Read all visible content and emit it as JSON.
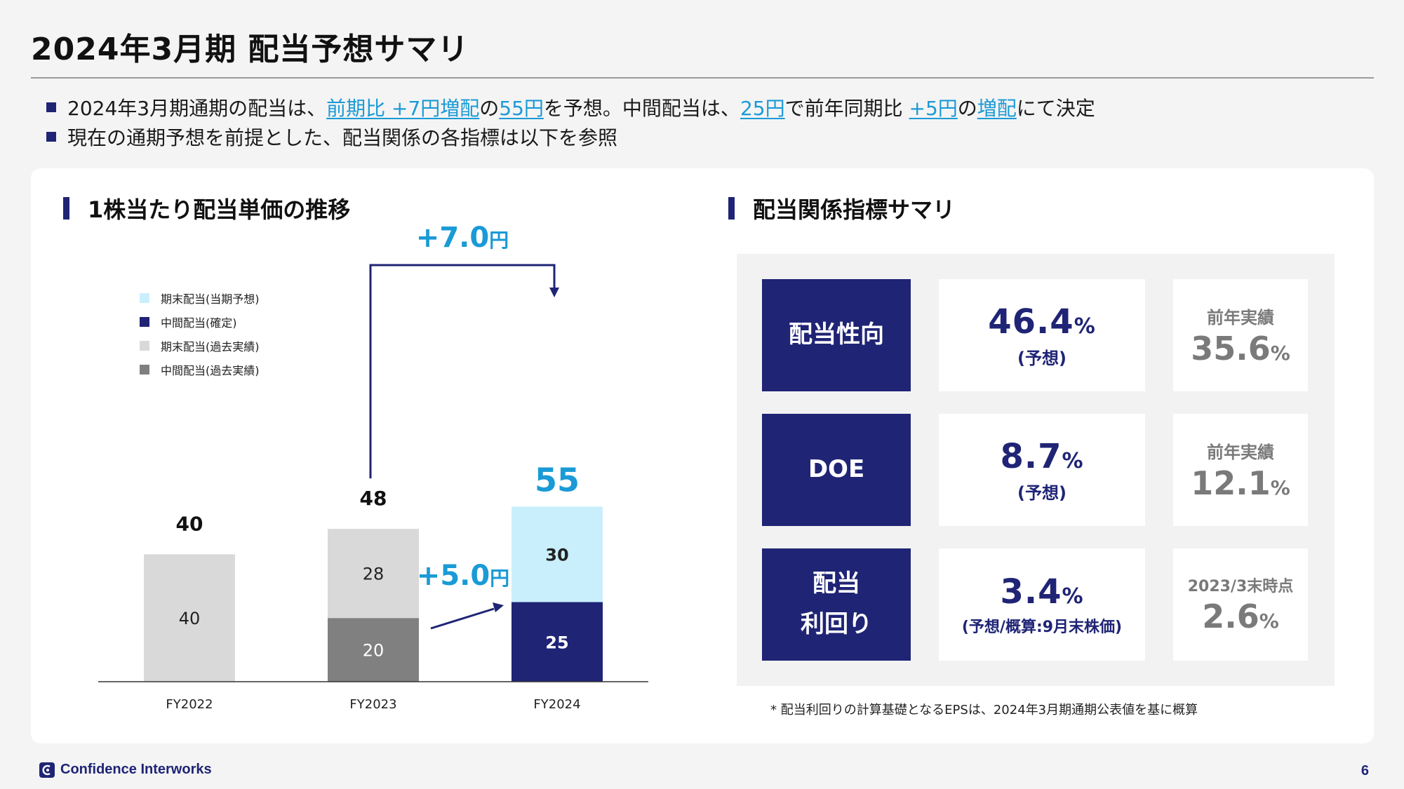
{
  "title": "2024年3月期 配当予想サマリ",
  "bullets": {
    "b1": {
      "p1": "2024年3月期通期の配当は、",
      "h1": "前期比 +7円増配",
      "p2": "の",
      "h2": "55円",
      "p3": "を予想。中間配当は、",
      "h3": "25円",
      "p4": "で前年同期比 ",
      "h4": "+5円",
      "p5": "の",
      "h5": "増配",
      "p6": "にて決定"
    },
    "b2": "現在の通期予想を前提とした、配当関係の各指標は以下を参照"
  },
  "left_section_title": "1株当たり配当単価の推移",
  "right_section_title": "配当関係指標サマリ",
  "colors": {
    "navy": "#1f2475",
    "light_blue": "#c9effc",
    "light_gray": "#d9d9d9",
    "dark_gray": "#808080",
    "accent": "#1a9ad6"
  },
  "chart_data": {
    "type": "bar",
    "stacked": true,
    "categories": [
      "FY2022",
      "FY2023",
      "FY2024"
    ],
    "series": [
      {
        "name": "中間配当(過去実績)",
        "values": [
          null,
          20,
          null
        ],
        "color": "#808080"
      },
      {
        "name": "期末配当(過去実績)",
        "values": [
          40,
          28,
          null
        ],
        "color": "#d9d9d9"
      },
      {
        "name": "中間配当(確定)",
        "values": [
          null,
          null,
          25
        ],
        "color": "#1f2475"
      },
      {
        "name": "期末配当(当期予想)",
        "values": [
          null,
          null,
          30
        ],
        "color": "#c9effc"
      }
    ],
    "totals": [
      "40",
      "48",
      "55"
    ],
    "legend_order": [
      "期末配当(当期予想)",
      "中間配当(確定)",
      "期末配当(過去実績)",
      "中間配当(過去実績)"
    ],
    "legend_placement": "top-left",
    "annotations": {
      "annual_diff": {
        "num": "+7.0",
        "unit": "円"
      },
      "interim_diff": {
        "num": "+5.0",
        "unit": "円"
      }
    },
    "ylim": [
      0,
      70
    ],
    "grid": false
  },
  "metrics": [
    {
      "label_lines": [
        "配当性向"
      ],
      "value": "46.4",
      "unit": "%",
      "note": "(予想)",
      "prev_caption": "前年実績",
      "prev_value": "35.6",
      "prev_unit": "%"
    },
    {
      "label_lines": [
        "DOE"
      ],
      "value": "8.7",
      "unit": "%",
      "note": "(予想)",
      "prev_caption": "前年実績",
      "prev_value": "12.1",
      "prev_unit": "%"
    },
    {
      "label_lines": [
        "配当",
        "利回り"
      ],
      "value": "3.4",
      "unit": "%",
      "note": "(予想/概算:9月末株価)",
      "prev_caption": "2023/3末時点",
      "prev_value": "2.6",
      "prev_unit": "%"
    }
  ],
  "footnote": "* 配当利回りの計算基礎となるEPSは、2024年3月期通期公表値を基に概算",
  "footer": {
    "company": "Confidence Interworks",
    "page_number": "6"
  }
}
